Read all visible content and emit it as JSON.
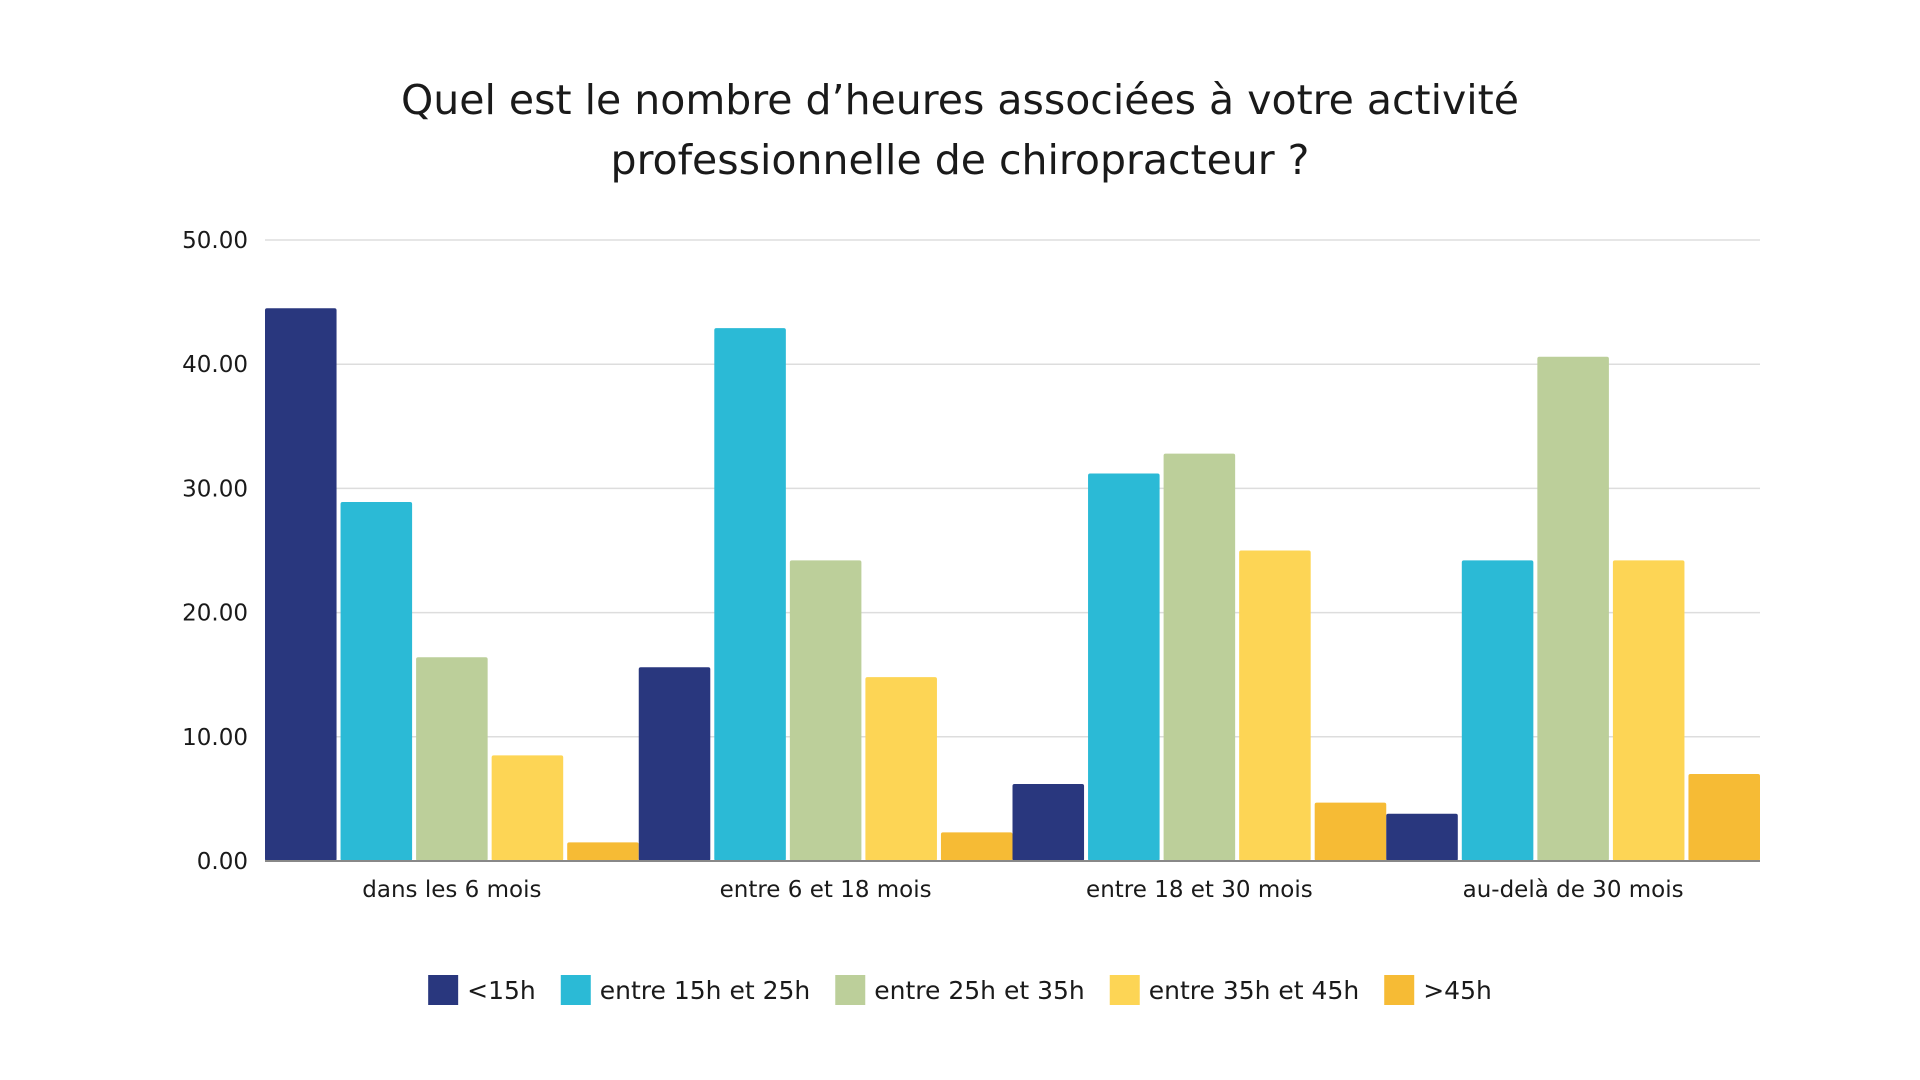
{
  "title": {
    "line1": "Quel est le nombre d’heures associées à votre activité",
    "line2": "professionnelle de chiropracteur ?"
  },
  "chart_data": {
    "type": "bar",
    "title": "Quel est le nombre d’heures associées à votre activité professionnelle de chiropracteur ?",
    "xlabel": "",
    "ylabel": "",
    "categories": [
      "dans les 6 mois",
      "entre 6 et 18 mois",
      "entre 18 et 30 mois",
      "au-delà de 30 mois"
    ],
    "ylim": [
      0,
      50
    ],
    "yticks": [
      "0.00",
      "10.00",
      "20.00",
      "30.00",
      "40.00",
      "50.00"
    ],
    "grid": true,
    "legend_position": "bottom",
    "series": [
      {
        "name": "<15h",
        "color": "#29377e",
        "values": [
          44.5,
          15.6,
          6.2,
          3.8
        ]
      },
      {
        "name": "entre 15h et 25h",
        "color": "#2bbad6",
        "values": [
          28.9,
          42.9,
          31.2,
          24.2
        ]
      },
      {
        "name": "entre 25h et 35h",
        "color": "#bccf9a",
        "values": [
          16.4,
          24.2,
          32.8,
          40.6
        ]
      },
      {
        "name": "entre 35h et 45h",
        "color": "#fdd555",
        "values": [
          8.5,
          14.8,
          25.0,
          24.2
        ]
      },
      {
        "name": ">45h",
        "color": "#f6bb35",
        "values": [
          1.5,
          2.3,
          4.7,
          7.0
        ]
      }
    ]
  }
}
